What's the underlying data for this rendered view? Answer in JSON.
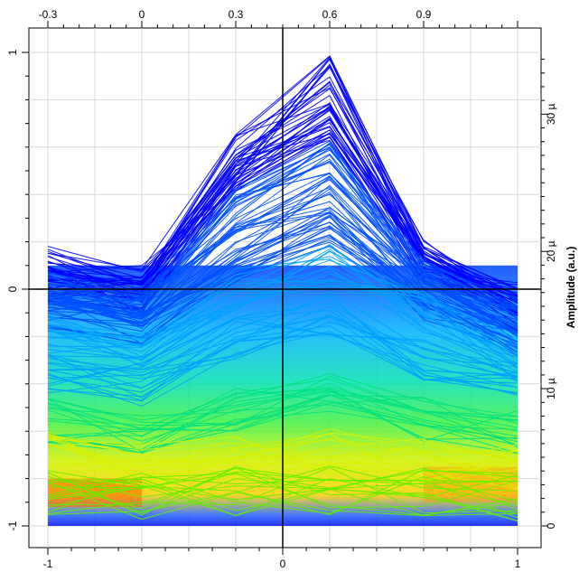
{
  "chart_data": {
    "type": "line",
    "subtype": "density-colored waveform overlay (many traces, persistence colormap)",
    "colormap": [
      "#0000ff",
      "#0050ff",
      "#00a0ff",
      "#00e0e0",
      "#00e080",
      "#60f000",
      "#d8f000",
      "#ffd000",
      "#ff8000",
      "#ff2000"
    ],
    "background": "#ffffff",
    "grid": true,
    "grid_color": "#d9d9d9",
    "axes": {
      "bottom": {
        "ticks": [
          "-1",
          "0",
          "1"
        ],
        "range": [
          -1,
          1
        ]
      },
      "left": {
        "ticks": [
          "-1",
          "0",
          "1"
        ],
        "range": [
          -1,
          1
        ]
      },
      "top": {
        "ticks": [
          "-0.3",
          "0",
          "0.3",
          "0.6",
          "0.9"
        ],
        "range": [
          -0.3,
          1.2
        ]
      },
      "right": {
        "ticks": [
          "0",
          "10 µ",
          "20 µ",
          "30 µ"
        ],
        "range": [
          0,
          3.45e-05
        ],
        "label": "Amplitude (a.u.)"
      }
    },
    "x": [
      -1,
      -0.6,
      -0.2,
      0.2,
      0.6,
      1
    ],
    "series": [
      {
        "values": [
          0.13,
          0.05,
          0.45,
          0.75,
          0.1,
          -0.05
        ]
      },
      {
        "values": [
          0.09,
          0.0,
          0.47,
          0.97,
          0.15,
          -0.05
        ]
      },
      {
        "values": [
          0.1,
          0.03,
          0.6,
          0.93,
          0.14,
          -0.06
        ]
      },
      {
        "values": [
          0.06,
          -0.01,
          0.62,
          0.82,
          0.12,
          -0.04
        ]
      },
      {
        "values": [
          0.02,
          -0.03,
          0.48,
          0.7,
          0.1,
          -0.1
        ]
      },
      {
        "values": [
          0.0,
          -0.05,
          0.35,
          0.55,
          0.05,
          -0.12
        ]
      },
      {
        "values": [
          -0.05,
          -0.1,
          0.2,
          0.4,
          0.0,
          -0.15
        ]
      },
      {
        "values": [
          -0.1,
          -0.15,
          0.1,
          0.25,
          -0.05,
          -0.2
        ]
      },
      {
        "values": [
          -0.2,
          -0.25,
          0.0,
          0.1,
          -0.1,
          -0.3
        ]
      },
      {
        "values": [
          -0.35,
          -0.4,
          -0.2,
          -0.1,
          -0.3,
          -0.4
        ]
      },
      {
        "values": [
          -0.55,
          -0.6,
          -0.5,
          -0.45,
          -0.55,
          -0.6
        ]
      },
      {
        "values": [
          -0.7,
          -0.75,
          -0.7,
          -0.68,
          -0.72,
          -0.75
        ]
      },
      {
        "values": [
          -0.85,
          -0.88,
          -0.85,
          -0.85,
          -0.86,
          -0.88
        ]
      }
    ],
    "density_bands": [
      {
        "y_range": [
          -1,
          -0.95
        ],
        "values": [
          0.0,
          0.0,
          0.0,
          0.0,
          0.0,
          0.0
        ],
        "label": ""
      }
    ]
  }
}
